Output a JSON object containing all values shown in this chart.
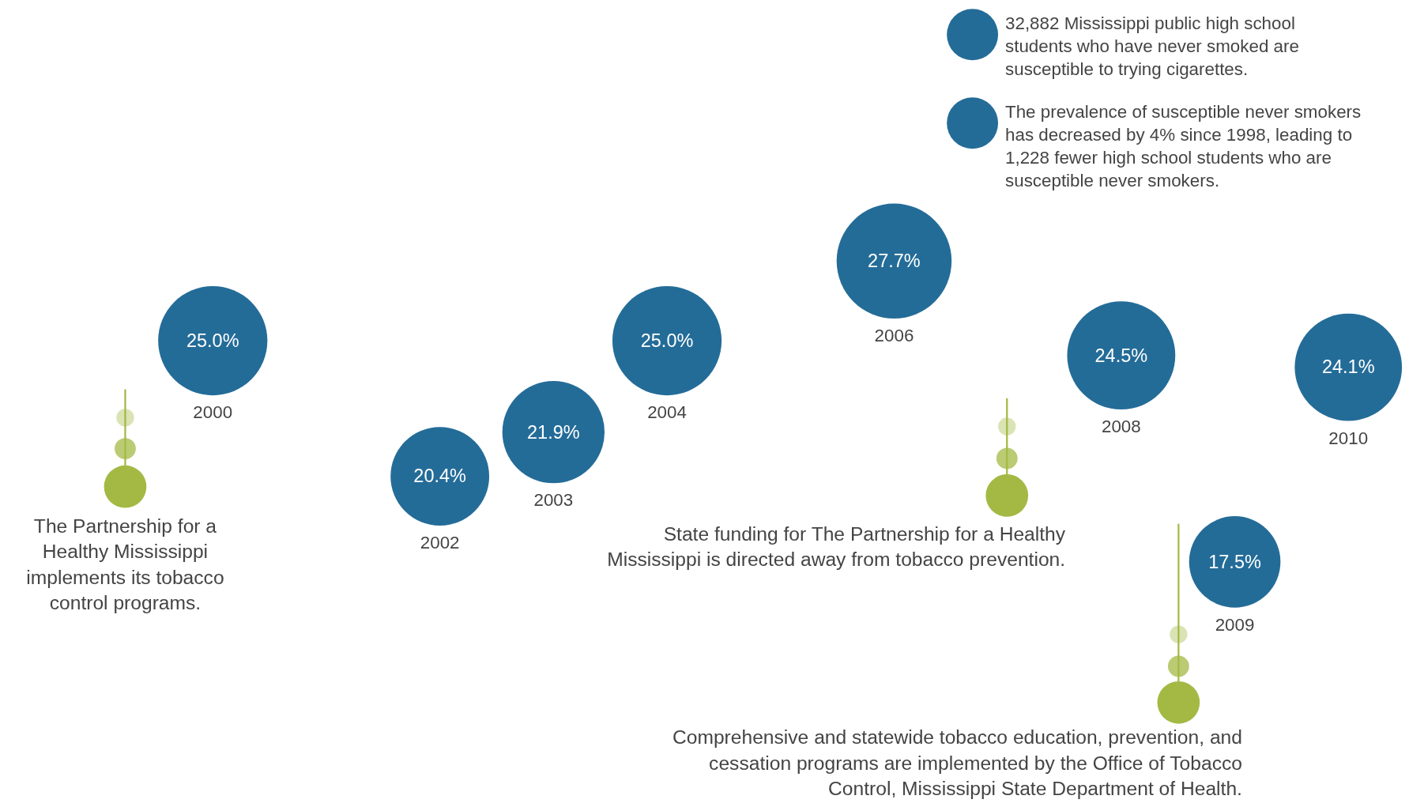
{
  "chart_data": {
    "type": "other",
    "categories": [
      "2000",
      "2002",
      "2003",
      "2004",
      "2006",
      "2008",
      "2009",
      "2010"
    ],
    "series": [
      {
        "color": "#246c98",
        "values": [
          25.0,
          20.4,
          21.9,
          25.0,
          27.7,
          24.5,
          17.5,
          24.1
        ],
        "value_labels": [
          "25.0%",
          "20.4%",
          "21.9%",
          "25.0%",
          "27.7%",
          "24.5%",
          "17.5%",
          "24.1%"
        ]
      }
    ],
    "annotations": [
      "32,882 Mississippi public high school students who have never smoked are susceptible to trying cigarettes.",
      "The prevalence of susceptible never smokers has decreased by 4% since 1998, leading to 1,228 fewer high school students who are susceptible never smokers.",
      "The Partnership for a Healthy Mississippi implements its tobacco control programs.",
      "State funding for The Partnership for a Healthy Mississippi is directed away from tobacco prevention.",
      "Comprehensive and statewide tobacco education, prevention, and cessation programs are implemented by the Office of Tobacco Control, Mississippi State Department of Health."
    ]
  }
}
